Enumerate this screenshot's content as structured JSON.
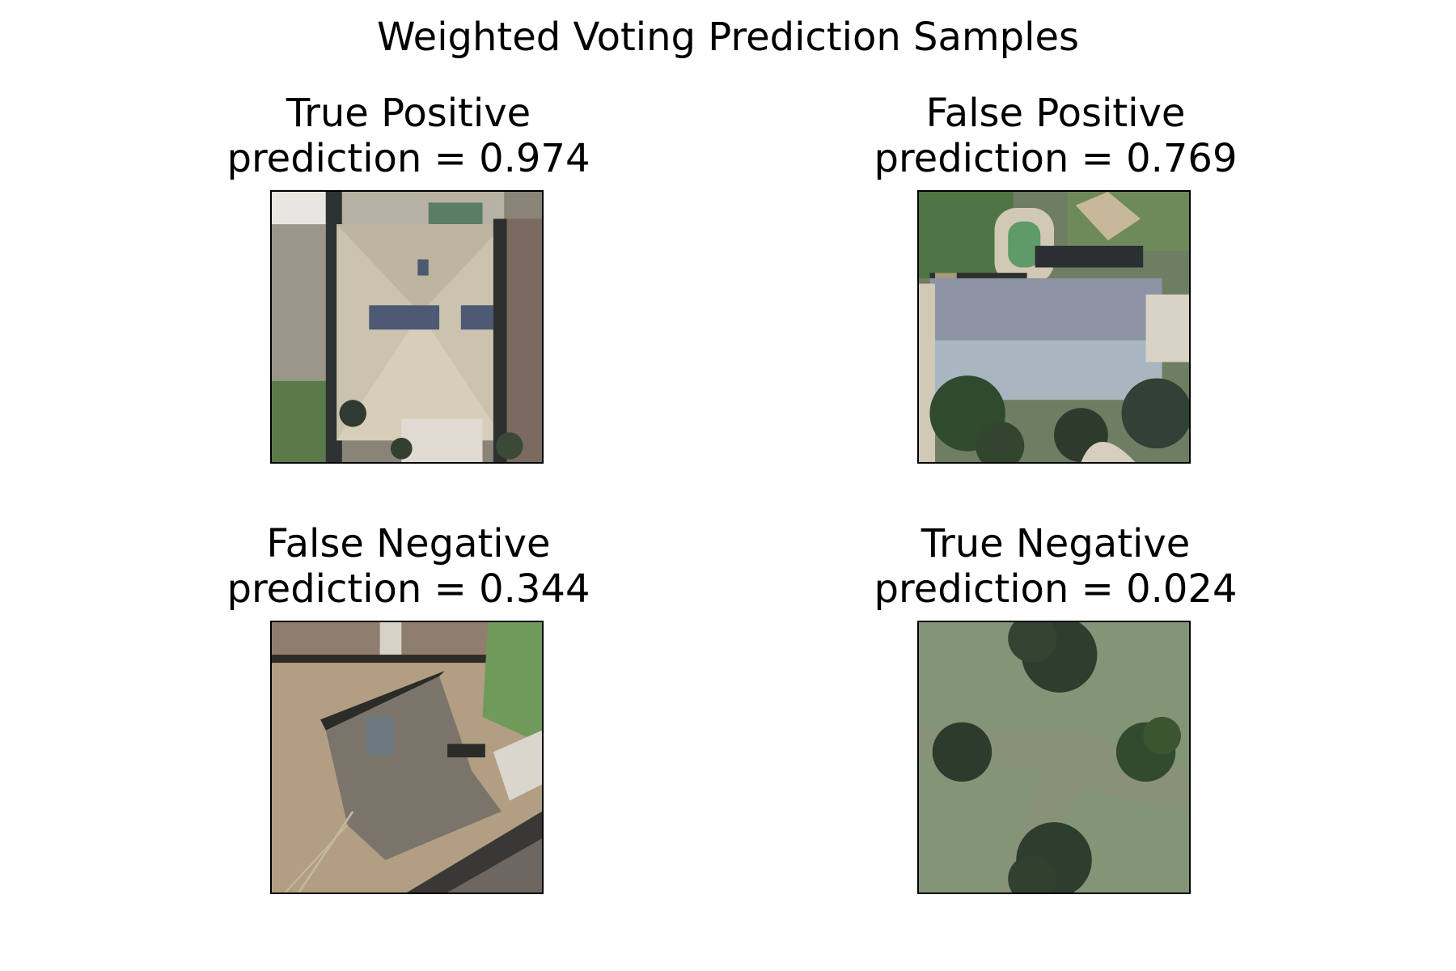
{
  "figure": {
    "title": "Weighted Voting Prediction Samples"
  },
  "panels": [
    {
      "label": "True Positive",
      "prediction_text": "prediction = 0.974",
      "prediction": 0.974,
      "image_icon": "aerial-house-with-solar-panels-icon"
    },
    {
      "label": "False Positive",
      "prediction_text": "prediction = 0.769",
      "prediction": 0.769,
      "image_icon": "aerial-house-with-pool-icon"
    },
    {
      "label": "False Negative",
      "prediction_text": "prediction = 0.344",
      "prediction": 0.344,
      "image_icon": "aerial-house-dirt-yard-icon"
    },
    {
      "label": "True Negative",
      "prediction_text": "prediction = 0.024",
      "prediction": 0.024,
      "image_icon": "aerial-grass-with-trees-icon"
    }
  ],
  "colors": {
    "frame": "#000000",
    "background": "#ffffff"
  }
}
